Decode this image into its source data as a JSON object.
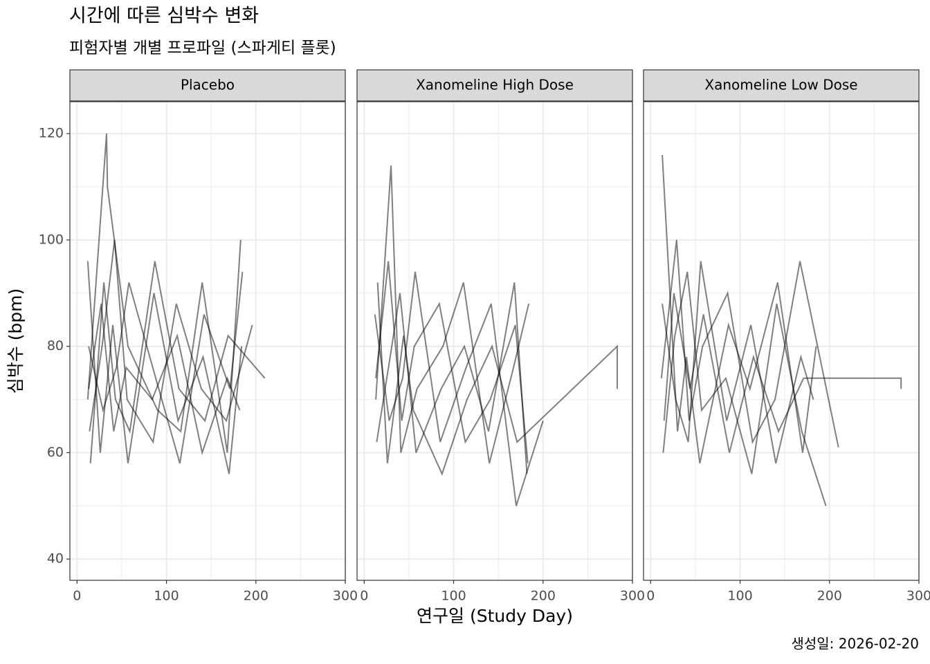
{
  "title": "시간에 따른 심박수 변화",
  "subtitle": "피험자별 개별 프로파일 (스파게티 플롯)",
  "x_label": "연구일 (Study Day)",
  "y_label": "심박수 (bpm)",
  "caption": "생성일: 2026-02-20",
  "chart_data": [
    {
      "type": "line",
      "title": "Placebo",
      "color": "#000000",
      "opacity": 0.5,
      "grid": true,
      "xlim": [
        -8,
        300
      ],
      "ylim": [
        36,
        126
      ],
      "xticks": [
        0,
        100,
        200,
        300
      ],
      "yticks": [
        40,
        60,
        80,
        100,
        120
      ],
      "series": [
        {
          "x": [
            13,
            27,
            41,
            55,
            84,
            112,
            140,
            168,
            182
          ],
          "values": [
            72,
            88,
            64,
            76,
            70,
            82,
            60,
            74,
            68
          ]
        },
        {
          "x": [
            12,
            26,
            40,
            57,
            86,
            113,
            141,
            170,
            184
          ],
          "values": [
            96,
            60,
            84,
            58,
            90,
            66,
            78,
            56,
            80
          ]
        },
        {
          "x": [
            14,
            28,
            42,
            56,
            85,
            111,
            139,
            167,
            196
          ],
          "values": [
            64,
            80,
            100,
            70,
            62,
            88,
            72,
            66,
            84
          ]
        },
        {
          "x": [
            13,
            29,
            44,
            58,
            88,
            115,
            142,
            171,
            185
          ],
          "values": [
            80,
            68,
            76,
            92,
            74,
            58,
            86,
            72,
            94
          ]
        },
        {
          "x": [
            15,
            30,
            43,
            59,
            87,
            114,
            143,
            169,
            210
          ],
          "values": [
            58,
            92,
            70,
            64,
            96,
            72,
            66,
            82,
            74
          ]
        },
        {
          "x": [
            12,
            33,
            34,
            57,
            90,
            116,
            140,
            168,
            183
          ],
          "values": [
            70,
            120,
            110,
            80,
            68,
            64,
            92,
            60,
            100
          ]
        }
      ]
    },
    {
      "type": "line",
      "title": "Xanomeline High Dose",
      "color": "#000000",
      "opacity": 0.5,
      "grid": true,
      "xlim": [
        -8,
        300
      ],
      "ylim": [
        36,
        126
      ],
      "xticks": [
        0,
        100,
        200,
        300
      ],
      "yticks": [
        40,
        60,
        80,
        100,
        120
      ],
      "series": [
        {
          "x": [
            13,
            27,
            42,
            56,
            84,
            113,
            141,
            169,
            183
          ],
          "values": [
            74,
            96,
            66,
            80,
            88,
            62,
            70,
            84,
            58
          ]
        },
        {
          "x": [
            14,
            29,
            40,
            58,
            86,
            112,
            139,
            168,
            182
          ],
          "values": [
            62,
            78,
            90,
            60,
            72,
            80,
            64,
            92,
            56
          ]
        },
        {
          "x": [
            12,
            28,
            43,
            57,
            85,
            114,
            142,
            170,
            200
          ],
          "values": [
            86,
            66,
            74,
            94,
            62,
            76,
            88,
            50,
            66
          ]
        },
        {
          "x": [
            13,
            30,
            41,
            59,
            88,
            111,
            140,
            167,
            184
          ],
          "values": [
            70,
            114,
            60,
            72,
            80,
            92,
            58,
            76,
            88
          ]
        },
        {
          "x": [
            15,
            26,
            44,
            55,
            87,
            115,
            143,
            171,
            283,
            283
          ],
          "values": [
            92,
            58,
            82,
            68,
            56,
            70,
            80,
            62,
            80,
            72
          ]
        }
      ]
    },
    {
      "type": "line",
      "title": "Xanomeline Low Dose",
      "color": "#000000",
      "opacity": 0.5,
      "grid": true,
      "xlim": [
        -8,
        300
      ],
      "ylim": [
        36,
        126
      ],
      "xticks": [
        0,
        100,
        200,
        300
      ],
      "yticks": [
        40,
        60,
        80,
        100,
        120
      ],
      "series": [
        {
          "x": [
            13,
            28,
            42,
            56,
            85,
            112,
            140,
            168,
            182
          ],
          "values": [
            88,
            70,
            62,
            96,
            66,
            84,
            58,
            78,
            70
          ]
        },
        {
          "x": [
            14,
            27,
            41,
            57,
            84,
            113,
            141,
            169,
            196
          ],
          "values": [
            60,
            82,
            94,
            68,
            74,
            56,
            88,
            64,
            50
          ]
        },
        {
          "x": [
            12,
            29,
            43,
            58,
            86,
            114,
            139,
            167,
            210
          ],
          "values": [
            74,
            100,
            66,
            80,
            90,
            62,
            70,
            96,
            61
          ]
        },
        {
          "x": [
            13,
            30,
            40,
            55,
            87,
            111,
            142,
            170,
            185
          ],
          "values": [
            116,
            64,
            78,
            58,
            84,
            72,
            92,
            60,
            80
          ]
        },
        {
          "x": [
            15,
            26,
            44,
            59,
            88,
            115,
            143,
            171,
            280,
            280
          ],
          "values": [
            66,
            90,
            72,
            86,
            60,
            78,
            64,
            74,
            74,
            72
          ]
        }
      ]
    }
  ]
}
